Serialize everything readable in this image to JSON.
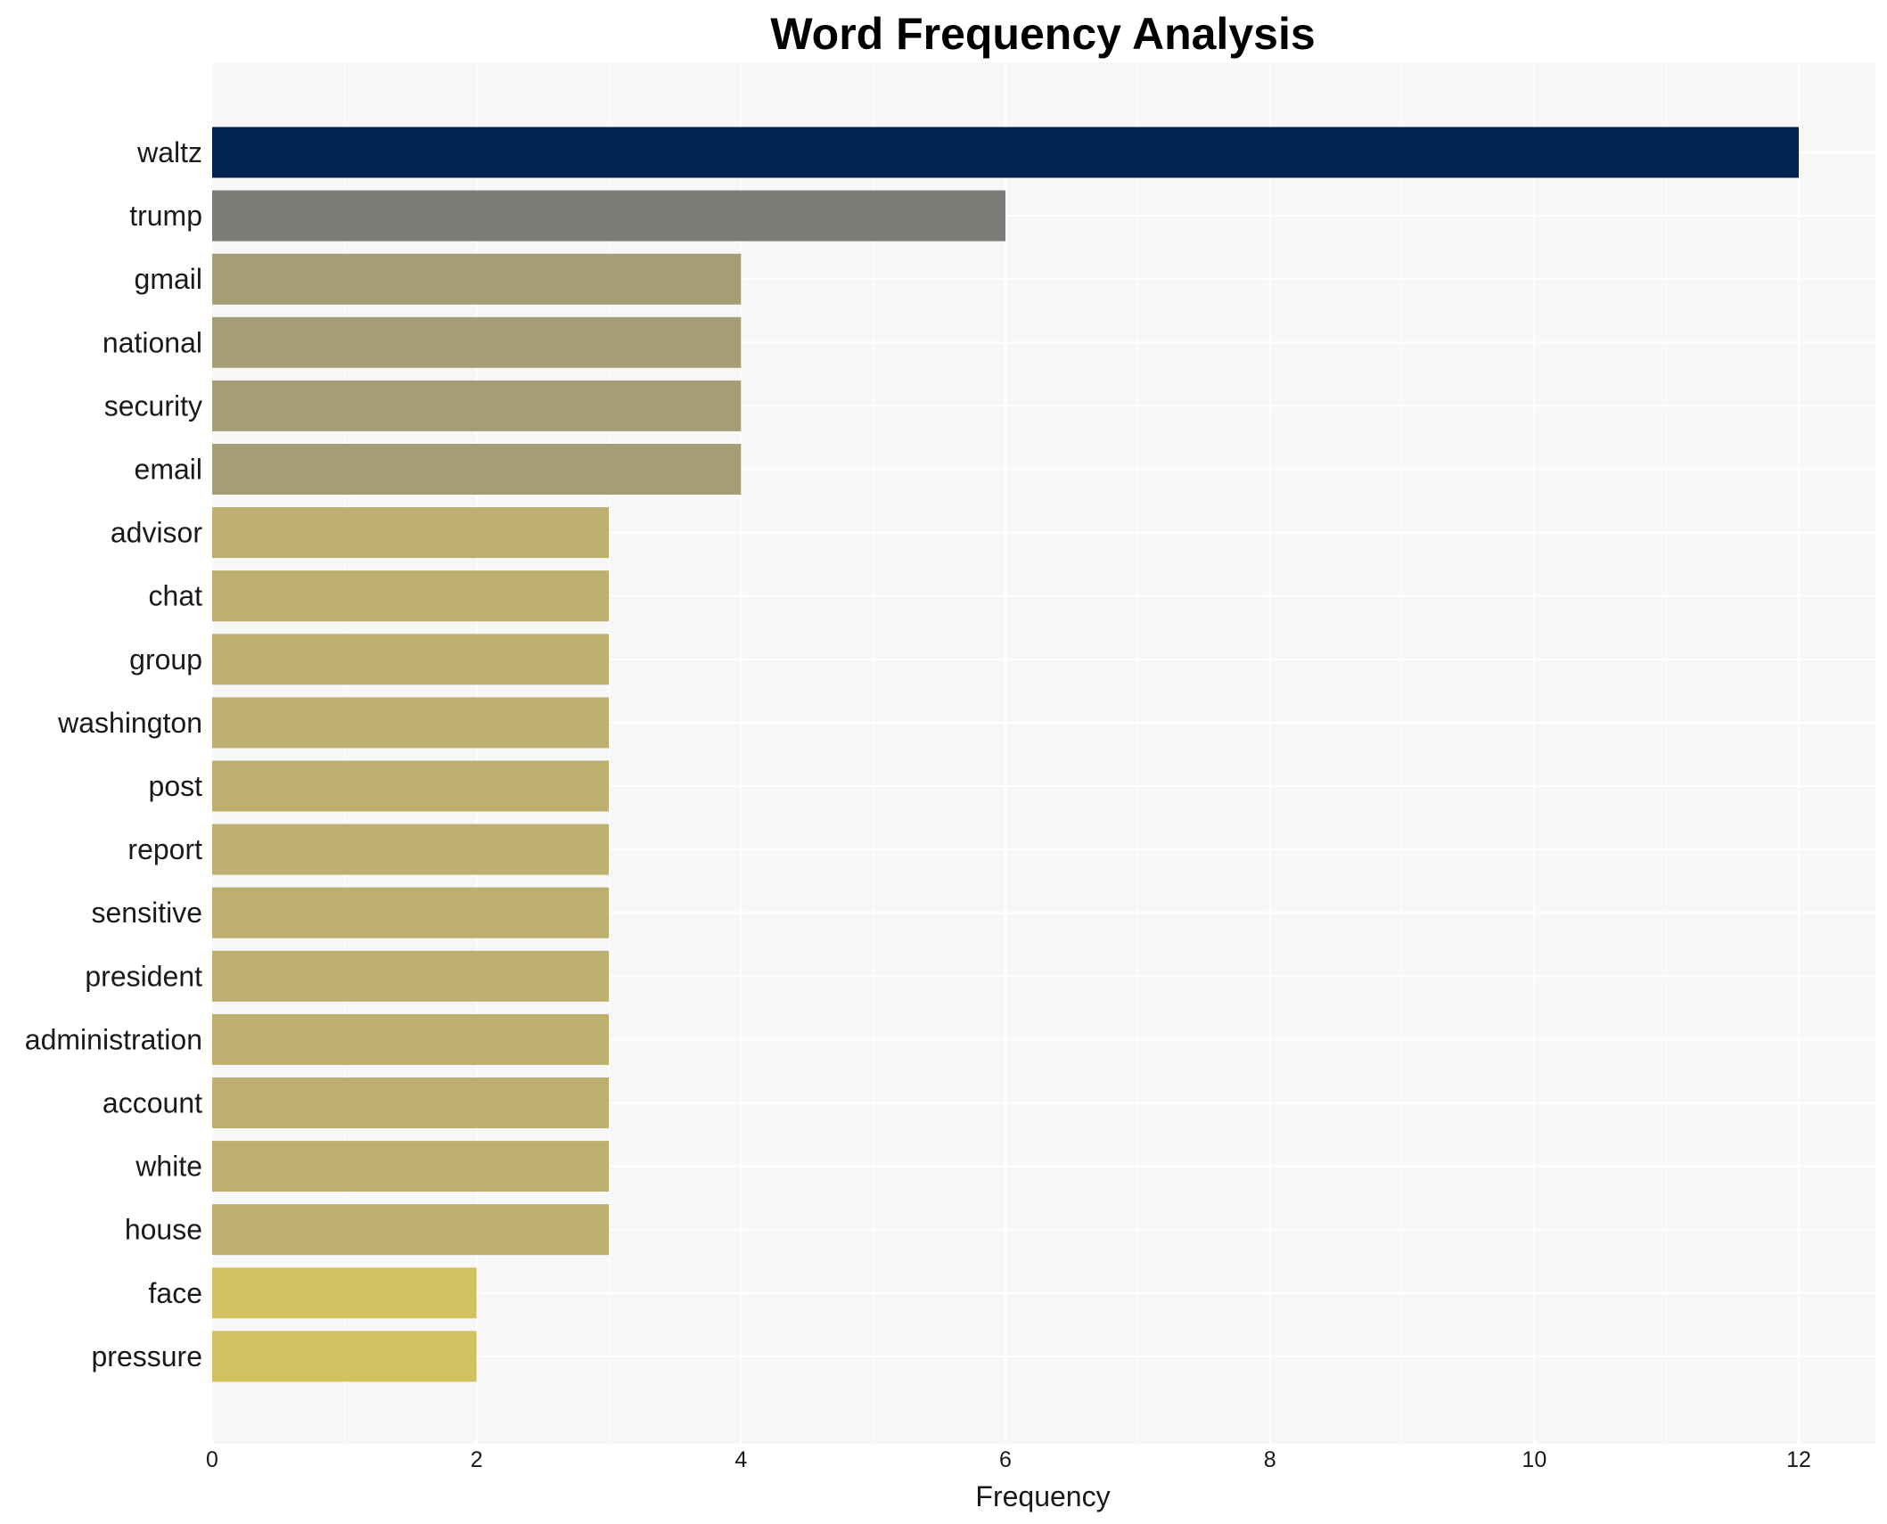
{
  "chart_data": {
    "type": "bar",
    "orientation": "horizontal",
    "title": "Word Frequency Analysis",
    "xlabel": "Frequency",
    "ylabel": "",
    "xlim": [
      0,
      12.6
    ],
    "x_ticks": [
      0,
      2,
      4,
      6,
      8,
      10,
      12
    ],
    "grid": true,
    "legend": "none",
    "categories": [
      "waltz",
      "trump",
      "gmail",
      "national",
      "security",
      "email",
      "advisor",
      "chat",
      "group",
      "washington",
      "post",
      "report",
      "sensitive",
      "president",
      "administration",
      "account",
      "white",
      "house",
      "face",
      "pressure"
    ],
    "values": [
      12,
      6,
      4,
      4,
      4,
      4,
      3,
      3,
      3,
      3,
      3,
      3,
      3,
      3,
      3,
      3,
      3,
      3,
      2,
      2
    ],
    "colors": [
      "#00234f",
      "#7c7b78",
      "#a59d74",
      "#a59d74",
      "#a59d74",
      "#a59d74",
      "#bcaf70",
      "#bcaf70",
      "#bcaf70",
      "#bcaf70",
      "#bcaf70",
      "#bcaf70",
      "#bcaf70",
      "#bcaf70",
      "#bcaf70",
      "#bcaf70",
      "#bcaf70",
      "#bcaf70",
      "#d2c160",
      "#d2c160"
    ],
    "plot_background": "#f7f7f7"
  }
}
